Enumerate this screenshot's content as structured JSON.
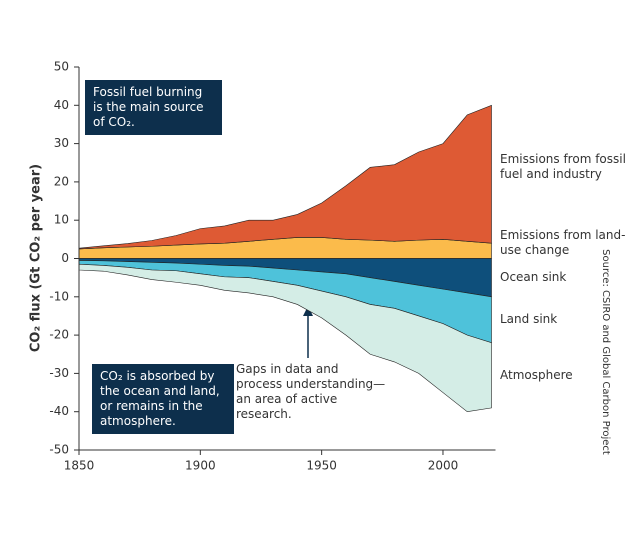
{
  "chart_data": {
    "type": "stacked-area",
    "ylabel": "CO₂ flux (Gt CO₂ per year)",
    "source": "Source: CSIRO and Global Carbon Project",
    "annotations": [
      "Fossil fuel burning is the main source of CO₂.",
      "CO₂ is absorbed by the ocean and land, or remains in the atmosphere.",
      "Gaps in data and process understanding—an area of active research."
    ],
    "x": [
      1850,
      1860,
      1870,
      1880,
      1890,
      1900,
      1910,
      1920,
      1930,
      1940,
      1950,
      1960,
      1970,
      1980,
      1990,
      2000,
      2010,
      2020
    ],
    "series": [
      {
        "name": "Emissions from land-use change",
        "color": "#fbbb4b",
        "values": [
          2.5,
          2.8,
          3,
          3.2,
          3.5,
          3.8,
          4,
          4.5,
          5,
          5.5,
          5.5,
          5,
          4.8,
          4.5,
          4.8,
          5,
          4.5,
          4
        ]
      },
      {
        "name": "Emissions from fossil fuel and industry",
        "color": "#de5a34",
        "values": [
          0.2,
          0.5,
          0.9,
          1.5,
          2.5,
          4,
          4.5,
          5.5,
          5,
          6,
          9,
          14,
          19,
          20,
          23,
          25,
          33,
          36
        ]
      },
      {
        "name": "Ocean sink",
        "color": "#0e4f7b",
        "values": [
          -0.5,
          -0.6,
          -0.8,
          -1,
          -1.2,
          -1.5,
          -1.8,
          -2,
          -2.5,
          -3,
          -3.5,
          -4,
          -5,
          -6,
          -7,
          -8,
          -9,
          -10
        ]
      },
      {
        "name": "Land sink",
        "color": "#4ec2da",
        "values": [
          -1,
          -1.2,
          -1.5,
          -2,
          -2,
          -2.5,
          -3,
          -3,
          -3.5,
          -4,
          -5,
          -6,
          -7,
          -7,
          -8,
          -9,
          -11,
          -12
        ]
      },
      {
        "name": "Atmosphere",
        "color": "#d4ede6",
        "values": [
          -1.5,
          -1.5,
          -2,
          -2.5,
          -3,
          -3,
          -3.5,
          -4,
          -4,
          -5,
          -7,
          -10,
          -13,
          -14,
          -15,
          -18,
          -20,
          -17
        ]
      }
    ],
    "xlim": [
      1850,
      2020
    ],
    "ylim": [
      -50,
      50
    ],
    "xticks": [
      1850,
      1900,
      1950,
      2000
    ],
    "yticks": [
      -50,
      -40,
      -30,
      -20,
      -10,
      0,
      10,
      20,
      30,
      40,
      50
    ]
  }
}
